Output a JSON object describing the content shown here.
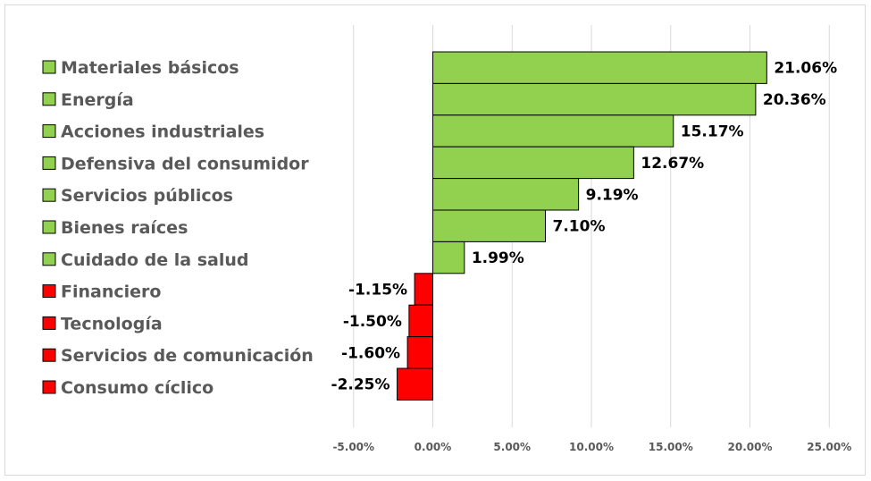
{
  "chart_data": {
    "type": "bar",
    "orientation": "horizontal",
    "categories": [
      "Materiales básicos",
      "Energía",
      "Acciones industriales",
      "Defensiva del consumidor",
      "Servicios públicos",
      "Bienes raíces",
      "Cuidado de la salud",
      "Financiero",
      "Tecnología",
      "Servicios de comunicación",
      "Consumo cíclico"
    ],
    "values": [
      21.06,
      20.36,
      15.17,
      12.67,
      9.19,
      7.1,
      1.99,
      -1.15,
      -1.5,
      -1.6,
      -2.25
    ],
    "data_labels": [
      "21.06%",
      "20.36%",
      "15.17%",
      "12.67%",
      "9.19%",
      "7.10%",
      "1.99%",
      "-1.15%",
      "-1.50%",
      "-1.60%",
      "-2.25%"
    ],
    "xlim": [
      -5,
      25
    ],
    "x_ticks": [
      -5,
      0,
      5,
      10,
      15,
      20,
      25
    ],
    "x_tick_labels": [
      "-5.00%",
      "0.00%",
      "5.00%",
      "10.00%",
      "15.00%",
      "20.00%",
      "25.00%"
    ],
    "grid": "vertical",
    "legend": "left",
    "colors": {
      "positive": "#92d050",
      "negative": "#ff0000",
      "grid": "#d9d9d9",
      "text": "#595959"
    }
  }
}
